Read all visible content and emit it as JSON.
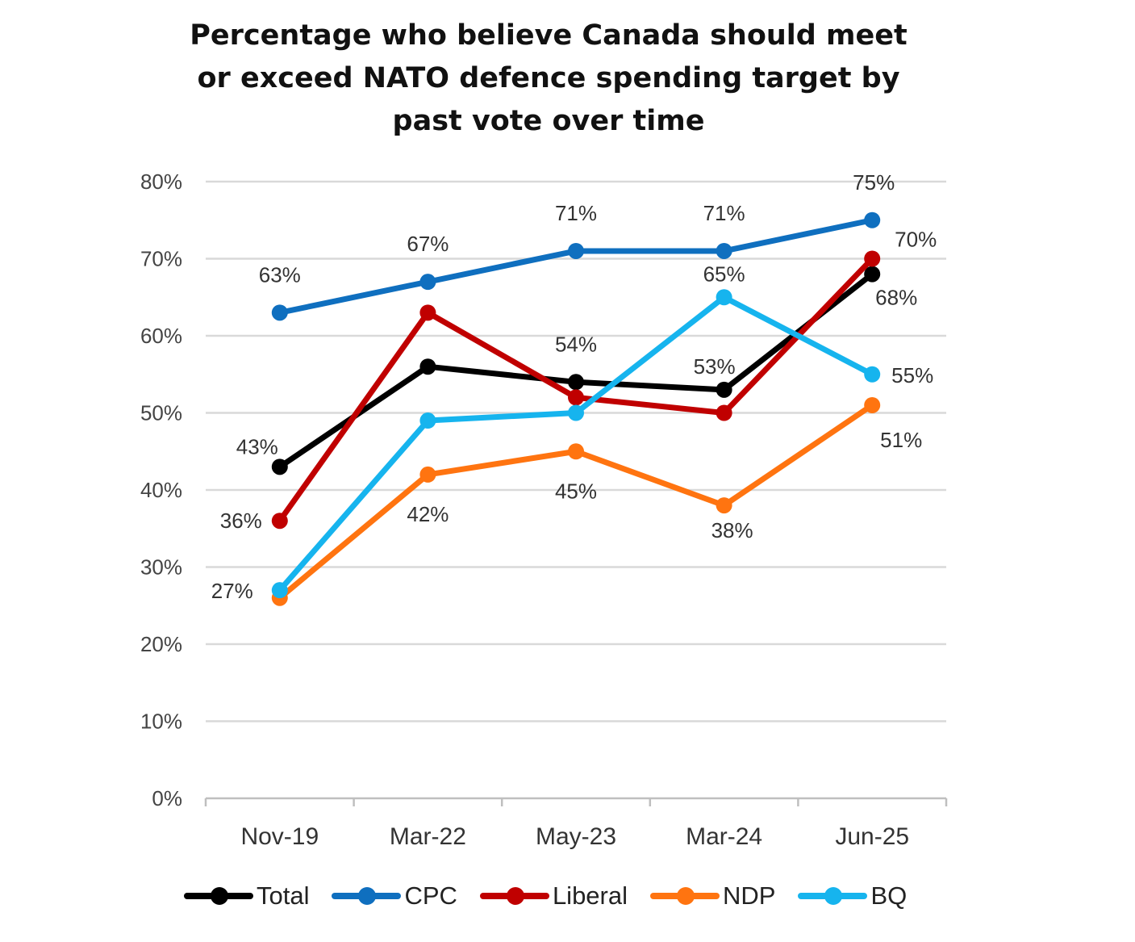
{
  "chart_data": {
    "type": "line",
    "title_lines": [
      "Percentage who believe Canada should meet",
      "or exceed NATO defence spending target by",
      "past vote over time"
    ],
    "categories": [
      "Nov-19",
      "Mar-22",
      "May-23",
      "Mar-24",
      "Jun-25"
    ],
    "ylim": [
      0,
      80
    ],
    "yticks": [
      "0%",
      "10%",
      "20%",
      "30%",
      "40%",
      "50%",
      "60%",
      "70%",
      "80%"
    ],
    "grid": true,
    "legend_position": "bottom",
    "series": [
      {
        "name": "Total",
        "color": "#000000",
        "values": [
          43,
          56,
          54,
          53,
          68
        ],
        "labels": [
          "43%",
          "",
          "54%",
          "53%",
          "68%"
        ]
      },
      {
        "name": "CPC",
        "color": "#0F6FBF",
        "values": [
          63,
          67,
          71,
          71,
          75
        ],
        "labels": [
          "63%",
          "67%",
          "71%",
          "71%",
          "75%"
        ]
      },
      {
        "name": "Liberal",
        "color": "#C00000",
        "values": [
          36,
          63,
          52,
          50,
          70
        ],
        "labels": [
          "36%",
          "",
          "",
          "",
          "70%"
        ]
      },
      {
        "name": "NDP",
        "color": "#FF7410",
        "values": [
          26,
          42,
          45,
          38,
          51
        ],
        "labels": [
          "",
          "42%",
          "45%",
          "38%",
          "51%"
        ]
      },
      {
        "name": "BQ",
        "color": "#16B4EE",
        "values": [
          27,
          49,
          50,
          65,
          55
        ],
        "labels": [
          "27%",
          "",
          "",
          "65%",
          "55%"
        ]
      }
    ]
  }
}
